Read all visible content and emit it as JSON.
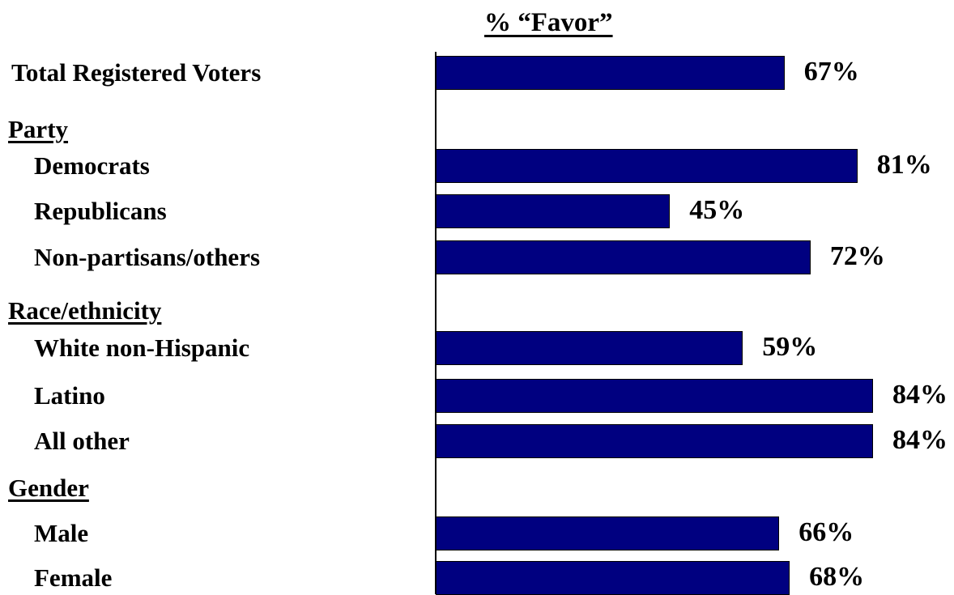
{
  "chart_data": {
    "type": "bar",
    "orientation": "horizontal",
    "title": "% “Favor”",
    "xlim": [
      0,
      100
    ],
    "grid": false,
    "bar_color": "#000080",
    "rows": [
      {
        "kind": "total",
        "label": "Total Registered Voters",
        "value": 67,
        "value_label": "67%"
      },
      {
        "kind": "section",
        "label": "Party"
      },
      {
        "kind": "item",
        "label": "Democrats",
        "value": 81,
        "value_label": "81%"
      },
      {
        "kind": "item",
        "label": "Republicans",
        "value": 45,
        "value_label": "45%"
      },
      {
        "kind": "item",
        "label": "Non-partisans/others",
        "value": 72,
        "value_label": "72%"
      },
      {
        "kind": "section",
        "label": "Race/ethnicity"
      },
      {
        "kind": "item",
        "label": "White non-Hispanic",
        "value": 59,
        "value_label": "59%"
      },
      {
        "kind": "item",
        "label": "Latino",
        "value": 84,
        "value_label": "84%"
      },
      {
        "kind": "item",
        "label": "All other",
        "value": 84,
        "value_label": "84%"
      },
      {
        "kind": "section",
        "label": "Gender"
      },
      {
        "kind": "item",
        "label": "Male",
        "value": 66,
        "value_label": "66%"
      },
      {
        "kind": "item",
        "label": "Female",
        "value": 68,
        "value_label": "68%"
      }
    ]
  }
}
